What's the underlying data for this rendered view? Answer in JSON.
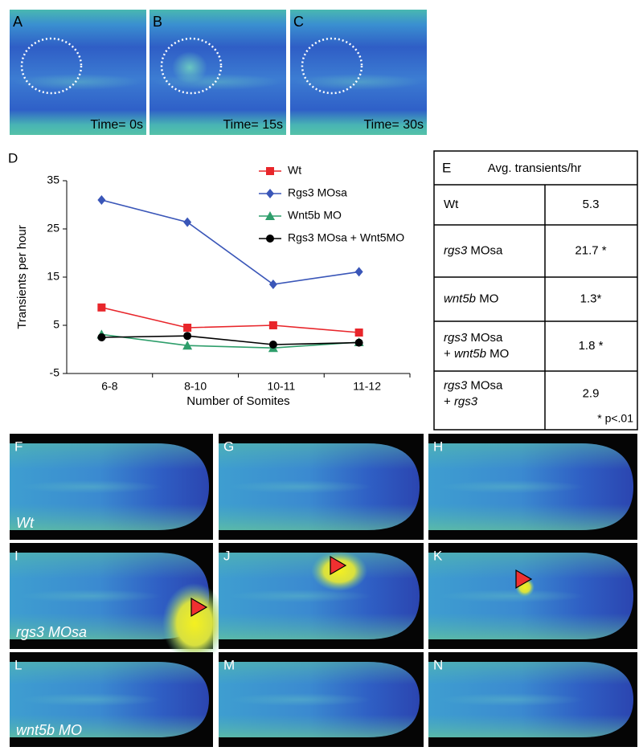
{
  "panels_top": [
    {
      "label": "A",
      "time": "Time= 0s"
    },
    {
      "label": "B",
      "time": "Time= 15s"
    },
    {
      "label": "C",
      "time": "Time= 30s"
    }
  ],
  "chart_data": {
    "type": "line",
    "panel_label": "D",
    "x_label": "Number of Somites",
    "y_label": "Transients per hour",
    "categories": [
      "6-8",
      "8-10",
      "10-11",
      "11-12"
    ],
    "ylim": [
      -5,
      35
    ],
    "yticks": [
      -5,
      5,
      15,
      25,
      35
    ],
    "series": [
      {
        "name": "Wt",
        "color": "#e8262b",
        "marker": "square",
        "values": [
          8.7,
          4.5,
          5.0,
          3.5
        ]
      },
      {
        "name": "Rgs3 MOsa",
        "color": "#3a56b8",
        "marker": "diamond",
        "values": [
          31,
          26.4,
          13.5,
          16.1
        ]
      },
      {
        "name": "Wnt5b MO",
        "color": "#2e9e6b",
        "marker": "triangle",
        "values": [
          3.1,
          0.8,
          0.3,
          1.5
        ]
      },
      {
        "name": "Rgs3 MOsa + Wnt5MO",
        "color": "#000000",
        "marker": "circle",
        "values": [
          2.5,
          2.8,
          1.0,
          1.4
        ]
      }
    ]
  },
  "table": {
    "panel_label": "E",
    "title": "Avg. transients/hr",
    "rows": [
      {
        "label": [
          [
            {
              "text": "Wt"
            }
          ]
        ],
        "value": "5.3"
      },
      {
        "label": [
          [
            {
              "text": "rgs3",
              "italic": true
            },
            {
              "text": " MOsa"
            }
          ]
        ],
        "value": "21.7 *"
      },
      {
        "label": [
          [
            {
              "text": "wnt5b",
              "italic": true
            },
            {
              "text": " MO"
            }
          ]
        ],
        "value": "1.3*"
      },
      {
        "label": [
          [
            {
              "text": "rgs3",
              "italic": true
            },
            {
              "text": " MOsa"
            }
          ],
          [
            {
              "text": "+ "
            },
            {
              "text": "wnt5b",
              "italic": true
            },
            {
              "text": " MO"
            }
          ]
        ],
        "value": "1.8 *"
      },
      {
        "label": [
          [
            {
              "text": "rgs3",
              "italic": true
            },
            {
              "text": " MOsa"
            }
          ],
          [
            {
              "text": "+ "
            },
            {
              "text": "rgs3",
              "italic": true
            }
          ]
        ],
        "value": "2.9"
      }
    ],
    "footnote": "* p<.01"
  },
  "panels_bottom": [
    {
      "label": "F",
      "caption": "Wt"
    },
    {
      "label": "G"
    },
    {
      "label": "H"
    },
    {
      "label": "I",
      "caption": "rgs3 MOsa"
    },
    {
      "label": "J"
    },
    {
      "label": "K"
    },
    {
      "label": "L",
      "caption": "wnt5b MO"
    },
    {
      "label": "M"
    },
    {
      "label": "N"
    }
  ]
}
